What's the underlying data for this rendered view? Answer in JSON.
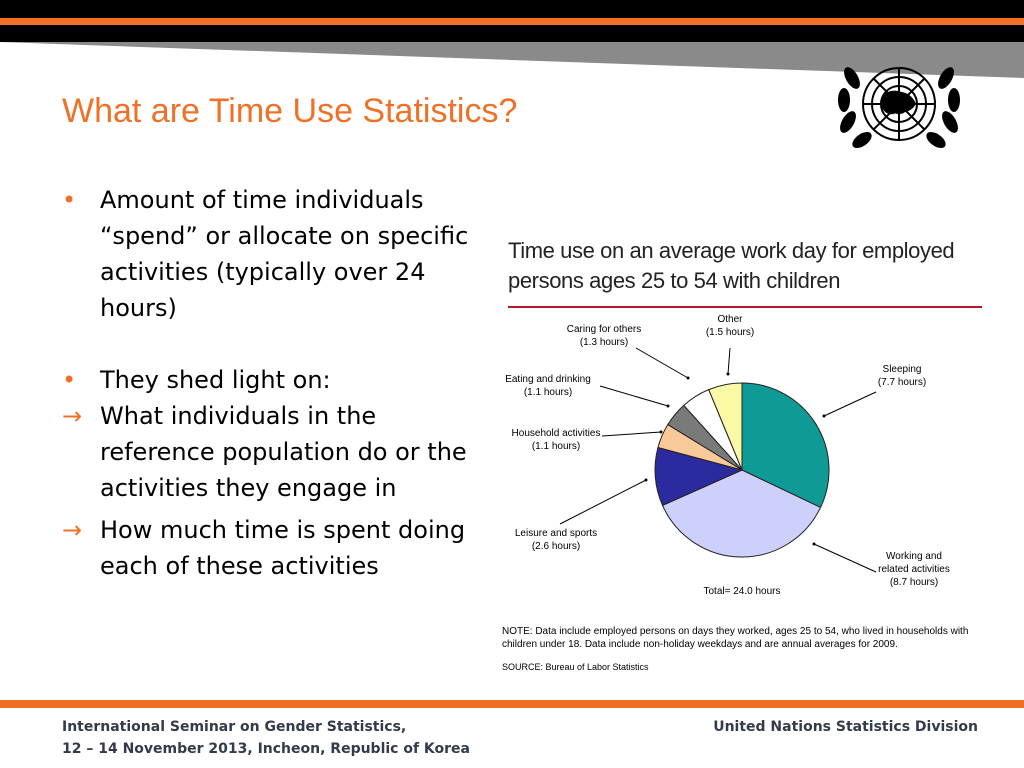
{
  "slide": {
    "title": "What are Time Use Statistics?",
    "bullets": [
      {
        "marker": "•",
        "text": "Amount of time individuals “spend” or allocate on specific activities (typically over 24 hours)"
      },
      {
        "marker": "•",
        "text": "They shed light on:"
      },
      {
        "marker": "→",
        "text": "What individuals in the reference population do or the activities they engage in"
      },
      {
        "marker": "→",
        "text": "How much time is spent doing each of these activities"
      }
    ],
    "logo": "united-nations-emblem"
  },
  "chart_data": {
    "type": "pie",
    "title": "Time use on an average work day for employed persons ages 25 to 54 with children",
    "total_label": "Total= 24.0 hours",
    "slices": [
      {
        "name": "Sleeping",
        "value": 7.7,
        "label": "Sleeping",
        "value_label": "(7.7 hours)",
        "color": "#0f9a96"
      },
      {
        "name": "Working and related activities",
        "value": 8.7,
        "label": "Working and related activities",
        "value_label": "(8.7 hours)",
        "color": "#cdd0fb"
      },
      {
        "name": "Leisure and sports",
        "value": 2.6,
        "label": "Leisure and sports",
        "value_label": "(2.6 hours)",
        "color": "#2b2a9e"
      },
      {
        "name": "Household activities",
        "value": 1.1,
        "label": "Household activities",
        "value_label": "(1.1 hours)",
        "color": "#f9c99a"
      },
      {
        "name": "Eating and drinking",
        "value": 1.1,
        "label": "Eating and drinking",
        "value_label": "(1.1 hours)",
        "color": "#7a7a7a"
      },
      {
        "name": "Caring for others",
        "value": 1.3,
        "label": "Caring for others",
        "value_label": "(1.3 hours)",
        "color": "#ffffff"
      },
      {
        "name": "Other",
        "value": 1.5,
        "label": "Other",
        "value_label": "(1.5 hours)",
        "color": "#fbf8a6"
      }
    ],
    "note": [
      "NOTE: Data include employed persons on days they worked, ages 25 to 54, who lived in households with",
      "children under 18. Data include non-holiday weekdays and are annual averages for 2009."
    ],
    "source": "SOURCE: Bureau of Labor Statistics"
  },
  "footer": {
    "left_line1": "International Seminar on Gender Statistics,",
    "left_line2": "12 – 14 November 2013, Incheon, Republic of Korea",
    "right": "United Nations Statistics Division"
  }
}
